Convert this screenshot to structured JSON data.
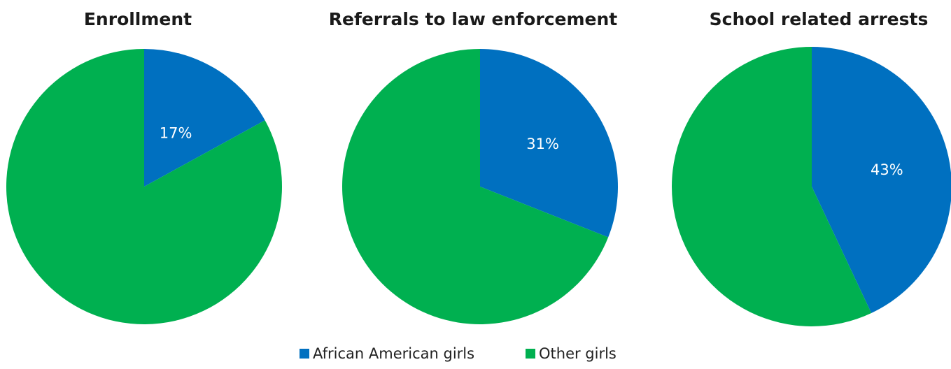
{
  "chart_data": [
    {
      "type": "pie",
      "title": "Enrollment",
      "slices": [
        {
          "name": "African American girls",
          "value": 17,
          "label": "17%",
          "color": "#0070C0"
        },
        {
          "name": "Other girls",
          "value": 83,
          "label": "",
          "color": "#00B050"
        }
      ]
    },
    {
      "type": "pie",
      "title": "Referrals to law enforcement",
      "slices": [
        {
          "name": "African American girls",
          "value": 31,
          "label": "31%",
          "color": "#0070C0"
        },
        {
          "name": "Other girls",
          "value": 69,
          "label": "",
          "color": "#00B050"
        }
      ]
    },
    {
      "type": "pie",
      "title": "School related arrests",
      "slices": [
        {
          "name": "African American girls",
          "value": 43,
          "label": "43%",
          "color": "#0070C0"
        },
        {
          "name": "Other girls",
          "value": 57,
          "label": "",
          "color": "#00B050"
        }
      ]
    }
  ],
  "legend": {
    "placement": "bottom",
    "items": [
      {
        "label": "African American girls",
        "color": "#0070C0"
      },
      {
        "label": "Other girls",
        "color": "#00B050"
      }
    ]
  }
}
